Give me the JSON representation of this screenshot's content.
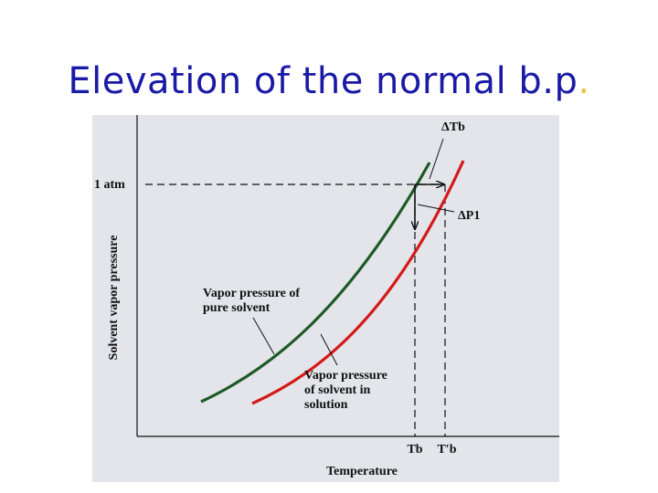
{
  "slide": {
    "title": "Elevation of the normal b.p",
    "title_end": "."
  },
  "figure": {
    "y_axis_label": "Solvent vapor pressure",
    "x_axis_label": "Temperature",
    "level_label": "1 atm",
    "delta_tb_label": "ΔTb",
    "delta_p1_label": "ΔP1",
    "tb_label": "Tb",
    "tb_prime_label": "T′b",
    "pure_solvent_label": [
      "Vapor pressure of",
      "pure solvent"
    ],
    "solution_label": [
      "Vapor pressure",
      "of solvent in",
      "solution"
    ],
    "curves": [
      {
        "id": "pure-solvent",
        "color": "#1e5a28"
      },
      {
        "id": "solution",
        "color": "#d41a1a"
      }
    ],
    "panel_color": "#e4e5ea",
    "title_color": "#1a1aa6",
    "title_dot_color": "#e8c84a"
  }
}
